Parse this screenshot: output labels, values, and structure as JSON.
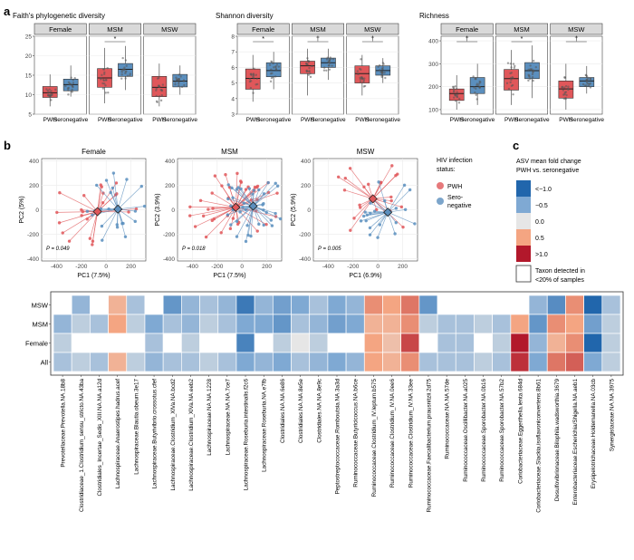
{
  "colors": {
    "pwh": "#e0575a",
    "seroneg": "#5b8fbe",
    "strip_bg": "#d9d9d9",
    "panel_border": "#444444",
    "grid": "#ebebeb"
  },
  "panel_labels": {
    "a": "a",
    "b": "b",
    "c": "c"
  },
  "chart_data": [
    {
      "type": "box",
      "title": "Faith's phylogenetic diversity",
      "groups": [
        "Female",
        "MSM",
        "MSW"
      ],
      "categories": [
        "PWH",
        "Seronegative"
      ],
      "ylim": [
        5,
        25
      ],
      "yticks": [
        5,
        10,
        15,
        20,
        25
      ],
      "boxes": [
        [
          {
            "q1": 9.3,
            "median": 10.5,
            "q3": 12.1,
            "min": 7.0,
            "max": 15.2
          },
          {
            "q1": 11.0,
            "median": 12.6,
            "q3": 14.0,
            "min": 9.5,
            "max": 17.5
          }
        ],
        [
          {
            "q1": 11.9,
            "median": 14.3,
            "q3": 16.7,
            "min": 7.8,
            "max": 22.0
          },
          {
            "q1": 14.7,
            "median": 16.5,
            "q3": 18.0,
            "min": 11.2,
            "max": 22.5
          }
        ],
        [
          {
            "q1": 9.5,
            "median": 11.9,
            "q3": 14.7,
            "min": 7.0,
            "max": 18.0
          },
          {
            "q1": 12.0,
            "median": 13.5,
            "q3": 15.2,
            "min": 10.0,
            "max": 17.5
          }
        ]
      ],
      "significance": [
        "",
        "*",
        ""
      ]
    },
    {
      "type": "box",
      "title": "Shannon diversity",
      "groups": [
        "Female",
        "MSM",
        "MSW"
      ],
      "categories": [
        "PWH",
        "Seronegative"
      ],
      "ylim": [
        3,
        8
      ],
      "yticks": [
        3,
        4,
        5,
        6,
        7,
        8
      ],
      "boxes": [
        [
          {
            "q1": 4.6,
            "median": 5.3,
            "q3": 5.9,
            "min": 3.8,
            "max": 6.8
          },
          {
            "q1": 5.4,
            "median": 5.8,
            "q3": 6.3,
            "min": 4.6,
            "max": 7.0
          }
        ],
        [
          {
            "q1": 5.6,
            "median": 6.1,
            "q3": 6.4,
            "min": 4.2,
            "max": 7.2
          },
          {
            "q1": 6.0,
            "median": 6.3,
            "q3": 6.6,
            "min": 5.2,
            "max": 7.2
          }
        ],
        [
          {
            "q1": 5.0,
            "median": 5.6,
            "q3": 6.1,
            "min": 4.2,
            "max": 6.8
          },
          {
            "q1": 5.5,
            "median": 5.8,
            "q3": 6.1,
            "min": 5.0,
            "max": 6.6
          }
        ]
      ],
      "significance": [
        "*",
        "†",
        "†"
      ]
    },
    {
      "type": "box",
      "title": "Richness",
      "groups": [
        "Female",
        "MSM",
        "MSW"
      ],
      "categories": [
        "PWH",
        "Seronegative"
      ],
      "ylim": [
        80,
        420
      ],
      "yticks": [
        100,
        200,
        300,
        400
      ],
      "boxes": [
        [
          {
            "q1": 140,
            "median": 170,
            "q3": 190,
            "min": 100,
            "max": 250
          },
          {
            "q1": 170,
            "median": 200,
            "q3": 240,
            "min": 120,
            "max": 300
          }
        ],
        [
          {
            "q1": 185,
            "median": 235,
            "q3": 275,
            "min": 120,
            "max": 360
          },
          {
            "q1": 235,
            "median": 270,
            "q3": 305,
            "min": 150,
            "max": 380
          }
        ],
        [
          {
            "q1": 150,
            "median": 190,
            "q3": 225,
            "min": 100,
            "max": 300
          },
          {
            "q1": 200,
            "median": 225,
            "q3": 240,
            "min": 170,
            "max": 290
          }
        ]
      ],
      "significance": [
        "†",
        "*",
        "†"
      ]
    },
    {
      "type": "scatter",
      "title": "Female",
      "xlabel": "PC1 (7.5%)",
      "ylabel": "PC2 (5%)",
      "xlim": [
        -520,
        320
      ],
      "ylim": [
        -420,
        420
      ],
      "xticks": [
        -400,
        -200,
        0,
        200
      ],
      "yticks": [
        -400,
        -200,
        0,
        200,
        400
      ],
      "centroids": {
        "pwh": [
          -70,
          -15
        ],
        "seroneg": [
          95,
          5
        ]
      },
      "p_value": "P = 0.049"
    },
    {
      "type": "scatter",
      "title": "MSM",
      "xlabel": "PC1 (7.5%)",
      "ylabel": "PC2 (3.9%)",
      "xlim": [
        -520,
        320
      ],
      "ylim": [
        -420,
        420
      ],
      "xticks": [
        -400,
        -200,
        0,
        200
      ],
      "yticks": [
        -400,
        -200,
        0,
        200,
        400
      ],
      "centroids": {
        "pwh": [
          -50,
          20
        ],
        "seroneg": [
          90,
          30
        ]
      },
      "p_value": "P = 0.018"
    },
    {
      "type": "scatter",
      "title": "MSW",
      "xlabel": "PC1 (6.9%)",
      "ylabel": "PC2 (5.9%)",
      "xlim": [
        -520,
        320
      ],
      "ylim": [
        -420,
        420
      ],
      "xticks": [
        -400,
        -200,
        0,
        200
      ],
      "yticks": [
        -400,
        -200,
        0,
        200,
        400
      ],
      "centroids": {
        "pwh": [
          -40,
          90
        ],
        "seroneg": [
          80,
          -20
        ]
      },
      "p_value": "P = 0.005"
    },
    {
      "type": "heatmap",
      "rows": [
        "MSW",
        "MSM",
        "Female",
        "All"
      ],
      "columns": [
        "Prevotellaceae.Prevotella.NA.18b8",
        "Clostridiaceae_1.Clostridium_sensu_stricto.NA.43ba",
        "Clostridiales_Incertae_Sedis_XIII.NA.NA.a12d",
        "Lachnospiraceae.Anaerostipes.hadrus.acef",
        "Lachnospiraceae.Blautia.obeum.3e17",
        "Lachnospiraceae.Butyrivibrio.crossotus.cfef",
        "Lachnospiraceae.Clostridium_XlVa.NA.bcd2",
        "Lachnospiraceae.Clostridium_XlVa.NA.eeb2",
        "Lachnospiraceae.NA.NA.1228",
        "Lachnospiraceae.NA.NA.7ce7",
        "Lachnospiraceae.Roseburia.intestinalis.f2c6",
        "Lachnospiraceae.Roseburia.NA.e7fb",
        "Clostridiales.NA.NA.6e86",
        "Clostridiales.NA.NA.8e5e",
        "Clostridiales.NA.NA.8e9c",
        "Peptostreptococcaceae.Romboutsia.NA.3a3d",
        "Ruminococcaceae.Butyricicoccus.NA.b6ce",
        "Ruminococcaceae.Clostridium_IV.leptum.b575",
        "Ruminococcaceae.Clostridium_IV.NA.0ee6",
        "Ruminococcaceae.Clostridium_IV.NA.33ee",
        "Ruminococcaceae.Faecalibacterium.prausnitzii.2d75",
        "Ruminococcaceae.NA.NA.57de",
        "Ruminococcaceae.Oscillibacter.NA.a025",
        "Ruminococcaceae.Sporobacter.NA.0b16",
        "Ruminococcaceae.Sporobacter.NA.57b2",
        "Coriobacteriaceae.Eggerthella.lenta.684d",
        "Coriobacteriaceae.Slackia.isoflavoniconvertens.8b61",
        "Desulfovibrionaceae.Bilophila.wadsworthia.3679",
        "Enterobacteriaceae.Escherichia/Shigella.NA.aeb1",
        "Erysipelotrichaceae.Holdemanella.NA.03cb",
        "Synergistaceae.NA.NA.3975"
      ],
      "values": [
        [
          null,
          -0.4,
          null,
          0.4,
          -0.3,
          null,
          -0.7,
          -0.4,
          -0.3,
          -0.4,
          -1.0,
          -0.4,
          -0.6,
          -0.5,
          -0.3,
          -0.5,
          -0.4,
          0.6,
          0.5,
          0.7,
          -0.7,
          null,
          null,
          null,
          null,
          null,
          -0.4,
          -0.8,
          0.6,
          -1.2,
          -0.3
        ],
        [
          -0.4,
          -0.2,
          -0.3,
          0.5,
          -0.2,
          -0.5,
          -0.3,
          -0.4,
          -0.2,
          -0.3,
          -0.5,
          -0.5,
          -0.7,
          -0.3,
          -0.4,
          -0.6,
          -0.5,
          0.4,
          0.4,
          0.6,
          -0.2,
          -0.3,
          -0.3,
          -0.2,
          -0.3,
          0.5,
          -0.7,
          0.6,
          0.5,
          -0.6,
          -0.2
        ],
        [
          -0.2,
          null,
          null,
          null,
          null,
          -0.3,
          null,
          -0.2,
          null,
          null,
          -0.9,
          null,
          -0.2,
          0.0,
          -0.2,
          null,
          null,
          0.5,
          0.3,
          0.9,
          null,
          -0.3,
          -0.3,
          null,
          -0.2,
          1.1,
          -0.4,
          0.4,
          0.6,
          -1.3,
          -0.2
        ],
        [
          -0.3,
          -0.2,
          -0.3,
          0.4,
          -0.2,
          -0.4,
          -0.3,
          -0.3,
          -0.2,
          -0.3,
          -0.5,
          -0.4,
          -0.5,
          -0.3,
          -0.4,
          -0.5,
          -0.4,
          0.5,
          0.4,
          0.6,
          -0.3,
          -0.3,
          -0.3,
          -0.2,
          -0.3,
          1.0,
          -0.5,
          0.7,
          0.8,
          -0.5,
          -0.2
        ]
      ]
    }
  ],
  "legend_b": {
    "title1": "HIV infection",
    "title2": "status:",
    "pwh": "PWH",
    "seroneg_1": "Sero-",
    "seroneg_2": "negative"
  },
  "legend_c": {
    "title1": "ASV mean fold change",
    "title2": "PWH vs. seronegative",
    "items": [
      "<−1.0",
      "−0.5",
      "0.0",
      "0.5",
      ">1.0"
    ],
    "item_colors": [
      "#2166ac",
      "#7fa9d3",
      "#e6e6e6",
      "#f4a582",
      "#b2182b"
    ],
    "na_1": "Taxon detected in",
    "na_2": "<20% of samples"
  }
}
